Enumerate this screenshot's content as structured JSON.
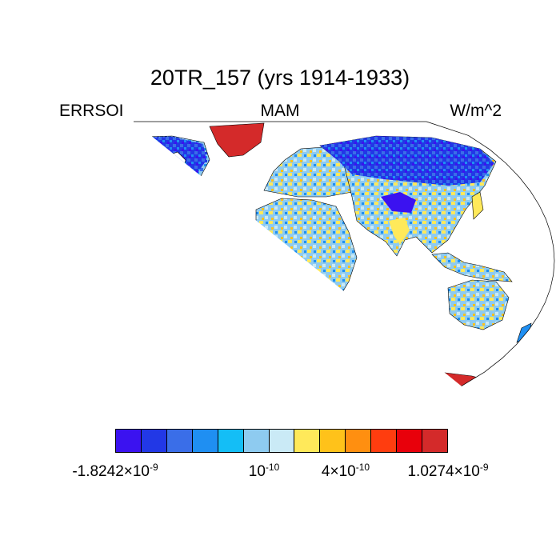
{
  "header": {
    "title": "20TR_157 (yrs 1914-1933)",
    "left": "ERRSOI",
    "center": "MAM",
    "right": "W/m^2"
  },
  "colorbar": {
    "colors": [
      "#3b12f0",
      "#2238e6",
      "#3a6ee8",
      "#1f8ff2",
      "#14bef6",
      "#8ecbf0",
      "#caeaf6",
      "#ffe95a",
      "#ffc21a",
      "#ff8f10",
      "#ff3d0f",
      "#e8000b",
      "#d42a2a"
    ],
    "labels": [
      {
        "mant": "-1.8242",
        "exp": "-9"
      },
      {
        "mant": "10",
        "exp": "-10"
      },
      {
        "mant": "4",
        "exp": "-10"
      },
      {
        "mant": "1.0274",
        "exp": "-9"
      }
    ]
  },
  "map": {
    "projection": "robinson",
    "ocean_color": "#ffffff",
    "land_base_color": "#8ecbf0",
    "ice_color": "#d42a2a"
  }
}
